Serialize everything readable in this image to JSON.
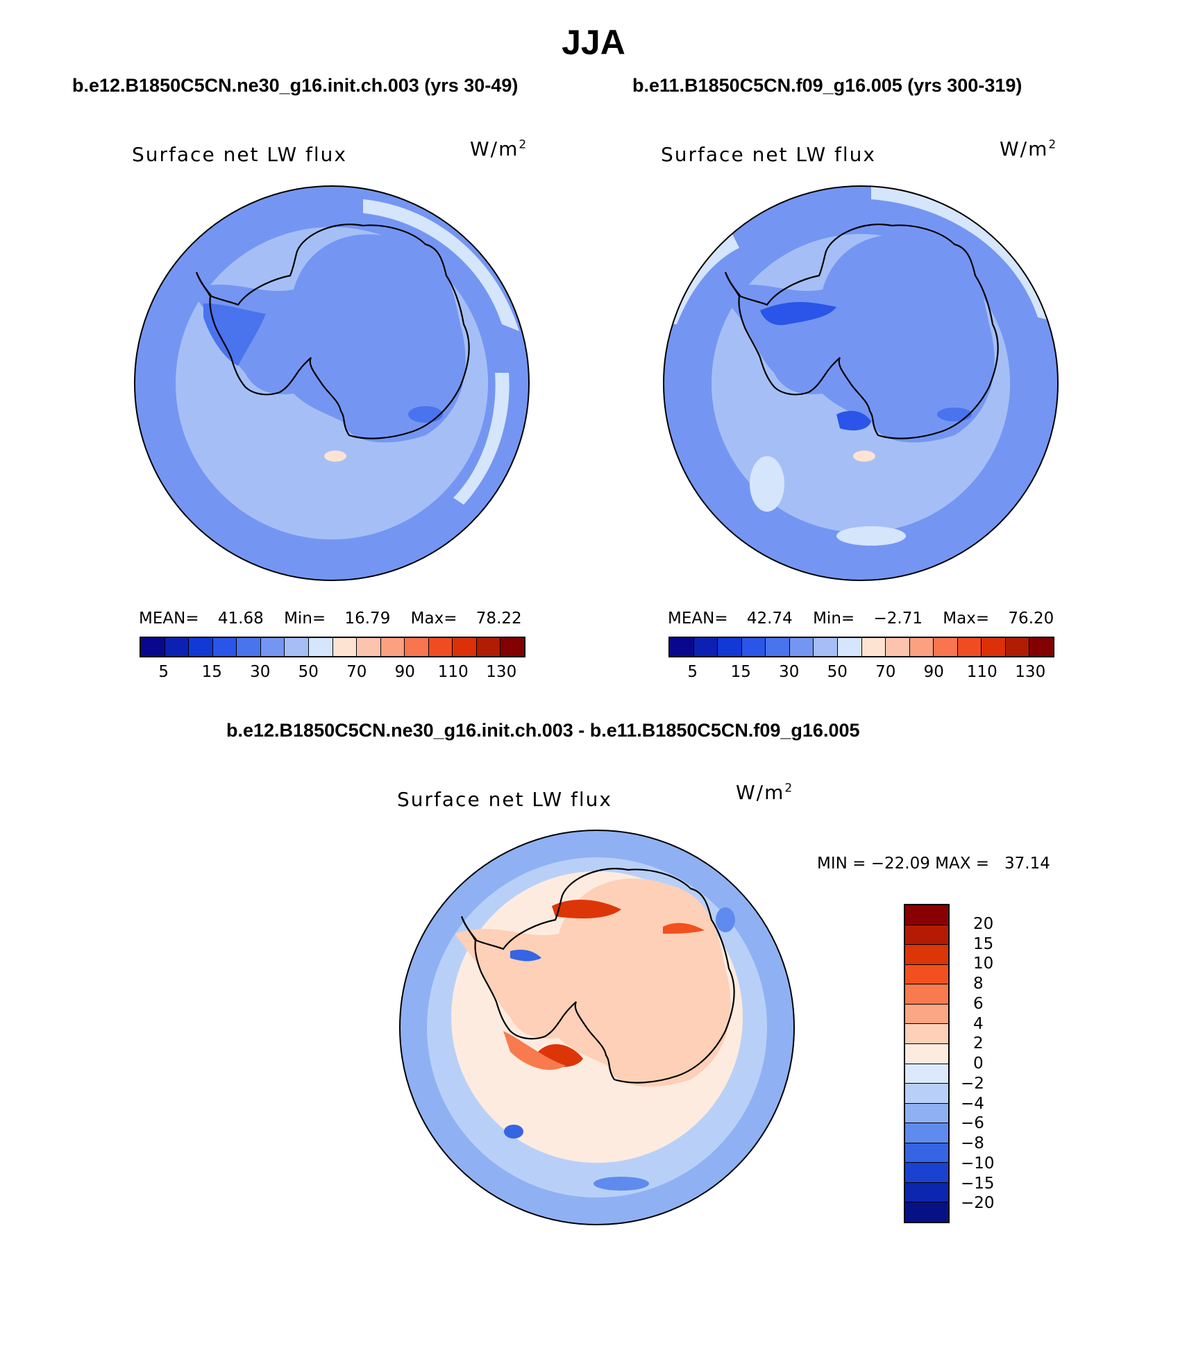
{
  "title": "JJA",
  "panels": [
    {
      "case": "b.e12.B1850C5CN.ne30_g16.init.ch.003 (yrs 30-49)",
      "variable": "Surface net LW flux",
      "units": "W/m",
      "units_exp": "2",
      "mean_label": "MEAN=",
      "mean": "41.68",
      "min_label": "Min=",
      "min": "16.79",
      "max_label": "Max=",
      "max": "78.22"
    },
    {
      "case": "b.e11.B1850C5CN.f09_g16.005 (yrs 300-319)",
      "variable": "Surface net LW flux",
      "units": "W/m",
      "units_exp": "2",
      "mean_label": "MEAN=",
      "mean": "42.74",
      "min_label": "Min=",
      "min": "−2.71",
      "max_label": "Max=",
      "max": "76.20"
    }
  ],
  "abs_colorbar": {
    "colors": [
      "#08088e",
      "#0c20b4",
      "#1238d6",
      "#2a55e8",
      "#4a73ee",
      "#7496f2",
      "#a5bff6",
      "#d5e5fb",
      "#fde3d2",
      "#fcc4ae",
      "#fba080",
      "#f87550",
      "#f04c22",
      "#dc3108",
      "#b01c04",
      "#820000"
    ],
    "ticks": [
      "5",
      "15",
      "30",
      "50",
      "70",
      "90",
      "110",
      "130"
    ]
  },
  "diff": {
    "case": "b.e12.B1850C5CN.ne30_g16.init.ch.003 - b.e11.B1850C5CN.f09_g16.005",
    "variable": "Surface net LW flux",
    "units": "W/m",
    "units_exp": "2",
    "stats": "MIN = −22.09 MAX =   37.14",
    "colors": [
      "#8a0000",
      "#b41a04",
      "#dc3508",
      "#f2501e",
      "#f87a4e",
      "#fba783",
      "#fdd0b7",
      "#feebdf",
      "#dce9fb",
      "#b8d0f8",
      "#8fb1f3",
      "#5f8bee",
      "#3564e4",
      "#1a42d0",
      "#0c26ae",
      "#061186"
    ],
    "ticks": [
      "20",
      "15",
      "10",
      "8",
      "6",
      "4",
      "2",
      "0",
      "−2",
      "−4",
      "−6",
      "−8",
      "−10",
      "−15",
      "−20"
    ]
  }
}
